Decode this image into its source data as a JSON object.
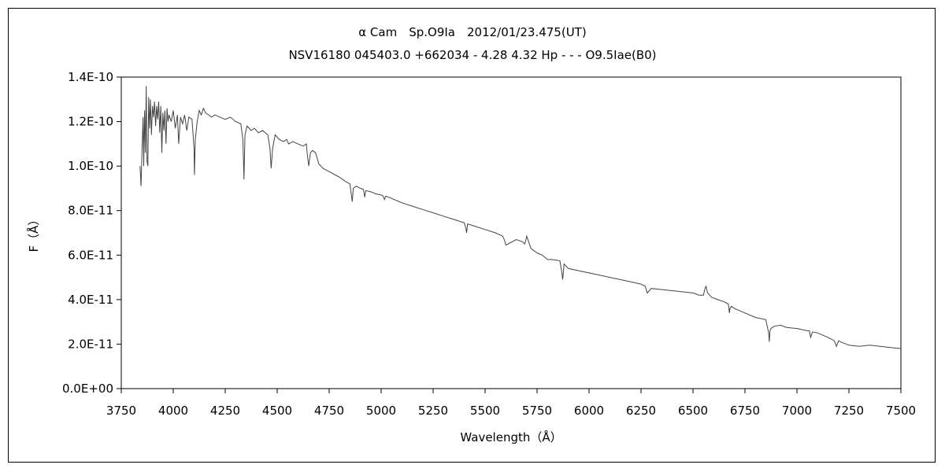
{
  "chart_data": {
    "type": "line",
    "title": "α Cam　Sp.O9Ia　2012/01/23.475(UT)",
    "subtitle": "NSV16180 045403.0 +662034 - 4.28 4.32 Hp - - - O9.5Iae(B0)",
    "xlabel": "Wavelength（Å）",
    "ylabel": "F（Å）",
    "xlim": [
      3750,
      7500
    ],
    "ylim": [
      0,
      1.4e-10
    ],
    "x_ticks": [
      3750,
      4000,
      4250,
      4500,
      4750,
      5000,
      5250,
      5500,
      5750,
      6000,
      6250,
      6500,
      6750,
      7000,
      7250,
      7500
    ],
    "x_tick_labels": [
      "3750",
      "4000",
      "4250",
      "4500",
      "4750",
      "5000",
      "5250",
      "5500",
      "5750",
      "6000",
      "6250",
      "6500",
      "6750",
      "7000",
      "7250",
      "7500"
    ],
    "y_ticks": [
      0,
      2e-11,
      4e-11,
      6e-11,
      8e-11,
      1e-10,
      1.2e-10,
      1.4e-10
    ],
    "y_tick_labels": [
      "0.0E+00",
      "2.0E-11",
      "4.0E-11",
      "6.0E-11",
      "8.0E-11",
      "1.0E-10",
      "1.2E-10",
      "1.4E-10"
    ],
    "grid": false,
    "series": [
      {
        "line_color": "#444444",
        "x": [
          3840,
          3845,
          3850,
          3855,
          3858,
          3862,
          3866,
          3870,
          3874,
          3878,
          3882,
          3886,
          3890,
          3895,
          3900,
          3905,
          3910,
          3915,
          3920,
          3925,
          3930,
          3935,
          3940,
          3945,
          3950,
          3955,
          3960,
          3965,
          3970,
          3975,
          3980,
          3990,
          4000,
          4010,
          4020,
          4026,
          4035,
          4045,
          4055,
          4065,
          4075,
          4090,
          4100,
          4102,
          4106,
          4115,
          4125,
          4135,
          4145,
          4155,
          4170,
          4185,
          4200,
          4225,
          4250,
          4275,
          4300,
          4325,
          4335,
          4340,
          4345,
          4355,
          4365,
          4375,
          4390,
          4410,
          4430,
          4455,
          4465,
          4471,
          4478,
          4490,
          4510,
          4530,
          4545,
          4555,
          4575,
          4600,
          4625,
          4640,
          4645,
          4652,
          4660,
          4670,
          4685,
          4700,
          4720,
          4740,
          4760,
          4780,
          4800,
          4830,
          4850,
          4857,
          4861,
          4866,
          4880,
          4900,
          4915,
          4921,
          4926,
          4950,
          4975,
          5000,
          5010,
          5016,
          5022,
          5050,
          5100,
          5150,
          5200,
          5250,
          5300,
          5350,
          5400,
          5408,
          5411,
          5416,
          5450,
          5500,
          5550,
          5585,
          5592,
          5600,
          5650,
          5680,
          5690,
          5696,
          5700,
          5706,
          5720,
          5750,
          5775,
          5800,
          5820,
          5860,
          5870,
          5873,
          5876,
          5880,
          5890,
          5900,
          5950,
          6000,
          6050,
          6100,
          6150,
          6200,
          6250,
          6270,
          6280,
          6300,
          6350,
          6400,
          6450,
          6500,
          6530,
          6550,
          6558,
          6563,
          6570,
          6590,
          6620,
          6650,
          6670,
          6675,
          6678,
          6685,
          6700,
          6750,
          6800,
          6850,
          6864,
          6867,
          6870,
          6875,
          6890,
          6920,
          6950,
          7000,
          7050,
          7060,
          7066,
          7075,
          7100,
          7150,
          7180,
          7190,
          7200,
          7210,
          7250,
          7300,
          7350,
          7400,
          7450,
          7500
        ],
        "y": [
          1e-10,
          9.1e-11,
          1.08e-10,
          1.22e-10,
          1e-10,
          1.25e-10,
          1.06e-10,
          1.36e-10,
          1.02e-10,
          1e-10,
          1.31e-10,
          1.17e-10,
          1.3e-10,
          1.14e-10,
          1.27e-10,
          1.22e-10,
          1.29e-10,
          1.18e-10,
          1.27e-10,
          1.21e-10,
          1.29e-10,
          1.15e-10,
          1.27e-10,
          1.06e-10,
          1.24e-10,
          1.16e-10,
          1.25e-10,
          1.1e-10,
          1.26e-10,
          1.2e-10,
          1.23e-10,
          1.2e-10,
          1.25e-10,
          1.17e-10,
          1.23e-10,
          1.1e-10,
          1.22e-10,
          1.19e-10,
          1.23e-10,
          1.16e-10,
          1.22e-10,
          1.21e-10,
          1.08e-10,
          9.6e-11,
          1.12e-10,
          1.2e-10,
          1.25e-10,
          1.23e-10,
          1.26e-10,
          1.24e-10,
          1.23e-10,
          1.22e-10,
          1.23e-10,
          1.22e-10,
          1.21e-10,
          1.22e-10,
          1.2e-10,
          1.19e-10,
          1.12e-10,
          9.4e-11,
          1.14e-10,
          1.18e-10,
          1.17e-10,
          1.16e-10,
          1.17e-10,
          1.15e-10,
          1.16e-10,
          1.14e-10,
          1.08e-10,
          9.9e-11,
          1.08e-10,
          1.14e-10,
          1.12e-10,
          1.11e-10,
          1.12e-10,
          1.1e-10,
          1.11e-10,
          1.1e-10,
          1.09e-10,
          1.1e-10,
          1.05e-10,
          1e-10,
          1.06e-10,
          1.07e-10,
          1.06e-10,
          1.01e-10,
          9.9e-11,
          9.8e-11,
          9.7e-11,
          9.6e-11,
          9.5e-11,
          9.3e-11,
          9.2e-11,
          8.7e-11,
          8.4e-11,
          9e-11,
          9.1e-11,
          9e-11,
          8.95e-11,
          8.6e-11,
          8.9e-11,
          8.85e-11,
          8.75e-11,
          8.7e-11,
          8.65e-11,
          8.5e-11,
          8.65e-11,
          8.55e-11,
          8.35e-11,
          8.2e-11,
          8.05e-11,
          7.9e-11,
          7.75e-11,
          7.6e-11,
          7.45e-11,
          7.2e-11,
          7e-11,
          7.4e-11,
          7.3e-11,
          7.15e-11,
          7e-11,
          6.85e-11,
          6.7e-11,
          6.45e-11,
          6.7e-11,
          6.6e-11,
          6.5e-11,
          6.65e-11,
          6.85e-11,
          6.7e-11,
          6.3e-11,
          6.1e-11,
          6e-11,
          5.8e-11,
          5.8e-11,
          5.75e-11,
          5.15e-11,
          4.9e-11,
          5.2e-11,
          5.6e-11,
          5.5e-11,
          5.4e-11,
          5.3e-11,
          5.2e-11,
          5.1e-11,
          5e-11,
          4.9e-11,
          4.8e-11,
          4.7e-11,
          4.6e-11,
          4.3e-11,
          4.5e-11,
          4.45e-11,
          4.4e-11,
          4.35e-11,
          4.3e-11,
          4.2e-11,
          4.2e-11,
          4.5e-11,
          4.6e-11,
          4.3e-11,
          4.1e-11,
          4e-11,
          3.9e-11,
          3.8e-11,
          3.4e-11,
          3.6e-11,
          3.7e-11,
          3.6e-11,
          3.4e-11,
          3.2e-11,
          3.1e-11,
          2.5e-11,
          2.1e-11,
          2.6e-11,
          2.7e-11,
          2.8e-11,
          2.85e-11,
          2.75e-11,
          2.7e-11,
          2.6e-11,
          2.6e-11,
          2.3e-11,
          2.55e-11,
          2.5e-11,
          2.3e-11,
          2.15e-11,
          1.9e-11,
          2.15e-11,
          2.1e-11,
          1.95e-11,
          1.9e-11,
          1.95e-11,
          1.9e-11,
          1.85e-11,
          1.8e-11
        ]
      }
    ]
  }
}
